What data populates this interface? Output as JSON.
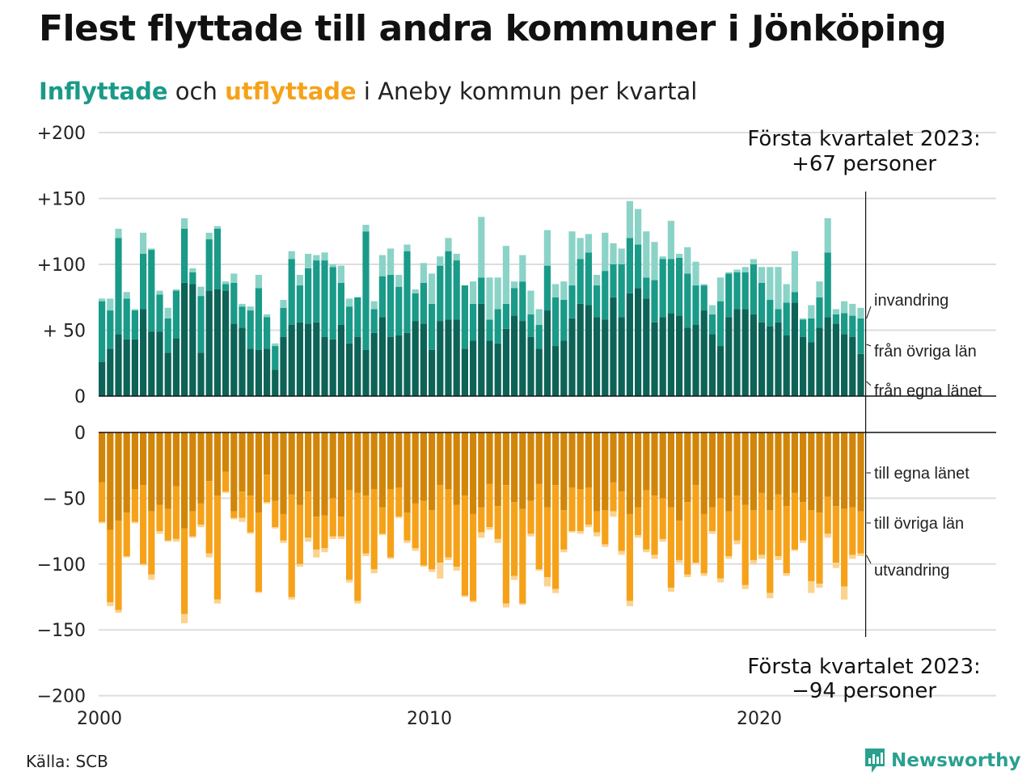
{
  "header": {
    "title": "Flest flyttade till andra kommuner i Jönköping",
    "subtitle_in": "Inflyttade",
    "subtitle_mid": " och ",
    "subtitle_out": "utflyttade",
    "subtitle_rest": " i Aneby kommun per kvartal"
  },
  "footer": {
    "source": "Källa: SCB",
    "brand": "Newsworthy"
  },
  "colors": {
    "in_own_county": "#0d6357",
    "in_other_counties": "#1a9a88",
    "in_immigration": "#8bd3c7",
    "out_own_county": "#d1860a",
    "out_other_counties": "#f5a21a",
    "out_emigration": "#fbd38f",
    "grid": "#dddddd",
    "brand": "#2aa08f"
  },
  "chart_data": {
    "type": "bar",
    "stacked": true,
    "x_start_year": 2000,
    "periods_per_year": 4,
    "quarters_count": 93,
    "x_ticks": [
      "2000",
      "2010",
      "2020"
    ],
    "top_panel": {
      "y_ticks": [
        "+200",
        "+150",
        "+100",
        "+ 50",
        "0"
      ],
      "ylim": [
        0,
        200
      ],
      "series": [
        {
          "name": "från egna länet",
          "values": [
            26,
            36,
            47,
            43,
            43,
            66,
            49,
            49,
            33,
            44,
            86,
            85,
            33,
            80,
            81,
            80,
            55,
            52,
            36,
            35,
            36,
            20,
            45,
            54,
            56,
            55,
            56,
            45,
            43,
            54,
            40,
            45,
            35,
            48,
            60,
            45,
            46,
            48,
            57,
            55,
            35,
            57,
            58,
            58,
            36,
            42,
            70,
            42,
            40,
            51,
            61,
            57,
            45,
            36,
            65,
            38,
            42,
            59,
            70,
            69,
            60,
            58,
            75,
            60,
            78,
            82,
            74,
            56,
            60,
            63,
            61,
            52,
            54,
            65,
            47,
            38,
            60,
            66,
            66,
            62,
            56,
            53,
            56,
            46,
            71,
            45,
            41,
            52,
            60,
            55,
            47,
            45,
            32
          ]
        },
        {
          "name": "från övriga län",
          "values": [
            46,
            29,
            73,
            31,
            22,
            42,
            62,
            28,
            26,
            36,
            41,
            9,
            43,
            39,
            46,
            5,
            31,
            16,
            29,
            47,
            24,
            18,
            22,
            50,
            28,
            42,
            47,
            58,
            55,
            32,
            28,
            30,
            90,
            18,
            31,
            47,
            37,
            62,
            21,
            31,
            35,
            42,
            52,
            45,
            48,
            28,
            20,
            16,
            26,
            19,
            21,
            30,
            17,
            18,
            34,
            37,
            31,
            25,
            34,
            40,
            24,
            37,
            25,
            40,
            42,
            33,
            16,
            32,
            44,
            41,
            44,
            41,
            30,
            19,
            15,
            34,
            33,
            28,
            28,
            38,
            30,
            20,
            10,
            25,
            8,
            13,
            18,
            23,
            49,
            7,
            16,
            16,
            27
          ]
        },
        {
          "name": "invandring",
          "values": [
            2,
            9,
            7,
            5,
            1,
            16,
            1,
            3,
            8,
            1,
            8,
            3,
            7,
            5,
            2,
            2,
            7,
            2,
            3,
            10,
            2,
            2,
            6,
            6,
            8,
            11,
            4,
            6,
            2,
            13,
            6,
            0,
            5,
            6,
            16,
            20,
            9,
            5,
            3,
            15,
            23,
            7,
            10,
            5,
            0,
            17,
            46,
            32,
            24,
            44,
            5,
            20,
            18,
            12,
            27,
            10,
            14,
            41,
            16,
            14,
            8,
            29,
            16,
            12,
            28,
            27,
            35,
            29,
            2,
            29,
            3,
            20,
            18,
            1,
            7,
            18,
            1,
            2,
            4,
            4,
            12,
            25,
            32,
            14,
            31,
            1,
            10,
            12,
            26,
            4,
            9,
            9,
            8
          ]
        }
      ]
    },
    "bottom_panel": {
      "y_ticks": [
        "0",
        "− 50",
        "−100",
        "−150",
        "−200"
      ],
      "ylim": [
        -200,
        0
      ],
      "series": [
        {
          "name": "till egna länet",
          "values": [
            -38,
            -74,
            -67,
            -61,
            -43,
            -40,
            -60,
            -55,
            -58,
            -41,
            -73,
            -60,
            -54,
            -37,
            -48,
            -30,
            -60,
            -45,
            -48,
            -61,
            -32,
            -52,
            -62,
            -47,
            -55,
            -45,
            -64,
            -63,
            -50,
            -64,
            -44,
            -46,
            -48,
            -43,
            -57,
            -43,
            -42,
            -61,
            -54,
            -52,
            -59,
            -40,
            -43,
            -55,
            -48,
            -62,
            -57,
            -39,
            -56,
            -40,
            -53,
            -58,
            -52,
            -39,
            -57,
            -40,
            -59,
            -42,
            -43,
            -42,
            -60,
            -59,
            -38,
            -45,
            -62,
            -57,
            -44,
            -48,
            -50,
            -57,
            -67,
            -53,
            -40,
            -62,
            -57,
            -50,
            -60,
            -48,
            -55,
            -59,
            -46,
            -59,
            -47,
            -56,
            -46,
            -53,
            -59,
            -61,
            -49,
            -56,
            -58,
            -57,
            -60
          ]
        },
        {
          "name": "till övriga län",
          "values": [
            -30,
            -55,
            -68,
            -33,
            -25,
            -60,
            -48,
            -20,
            -24,
            -40,
            -65,
            -19,
            -16,
            -55,
            -79,
            -15,
            -5,
            -20,
            -28,
            -60,
            -21,
            -20,
            -20,
            -78,
            -45,
            -35,
            -25,
            -25,
            -29,
            -15,
            -68,
            -82,
            -44,
            -61,
            -20,
            -52,
            -22,
            -21,
            -34,
            -49,
            -45,
            -59,
            -52,
            -47,
            -76,
            -66,
            -19,
            -33,
            -25,
            -90,
            -56,
            -72,
            -25,
            -65,
            -53,
            -79,
            -30,
            -33,
            -32,
            -28,
            -16,
            -26,
            -22,
            -45,
            -66,
            -21,
            -45,
            -45,
            -31,
            -61,
            -30,
            -55,
            -59,
            -45,
            -18,
            -61,
            -34,
            -34,
            -61,
            -38,
            -47,
            -63,
            -47,
            -51,
            -43,
            -29,
            -54,
            -54,
            -28,
            -43,
            -59,
            -36,
            -32
          ]
        },
        {
          "name": "utvandring",
          "values": [
            -1,
            -3,
            -2,
            -1,
            -1,
            -1,
            -4,
            -2,
            -1,
            -2,
            -7,
            -1,
            -2,
            -3,
            -3,
            -1,
            -1,
            -3,
            -1,
            -1,
            -1,
            -1,
            -2,
            -2,
            -2,
            -3,
            -6,
            -3,
            -2,
            -2,
            -2,
            -2,
            -2,
            -3,
            -1,
            -1,
            -1,
            -2,
            -2,
            -1,
            -2,
            -12,
            -2,
            -3,
            -1,
            -1,
            -4,
            -2,
            -3,
            -3,
            -3,
            -1,
            -2,
            -1,
            -7,
            -3,
            -2,
            -1,
            -2,
            -2,
            -3,
            -2,
            -4,
            -3,
            -4,
            -2,
            -2,
            -3,
            -2,
            -3,
            -2,
            -2,
            -1,
            -2,
            -2,
            -3,
            -2,
            -3,
            -3,
            -3,
            -3,
            -4,
            -3,
            -2,
            -1,
            -2,
            -9,
            -3,
            -3,
            -4,
            -10,
            -3,
            -2
          ]
        }
      ]
    },
    "annotations": {
      "top_label": "Första kvartalet 2023:",
      "top_value": "+67 personer",
      "bottom_label": "Första kvartalet 2023:",
      "bottom_value": "−94 personer",
      "legend_in": [
        "invandring",
        "från övriga län",
        "från egna länet"
      ],
      "legend_out": [
        "till egna länet",
        "till övriga län",
        "utvandring"
      ]
    }
  }
}
